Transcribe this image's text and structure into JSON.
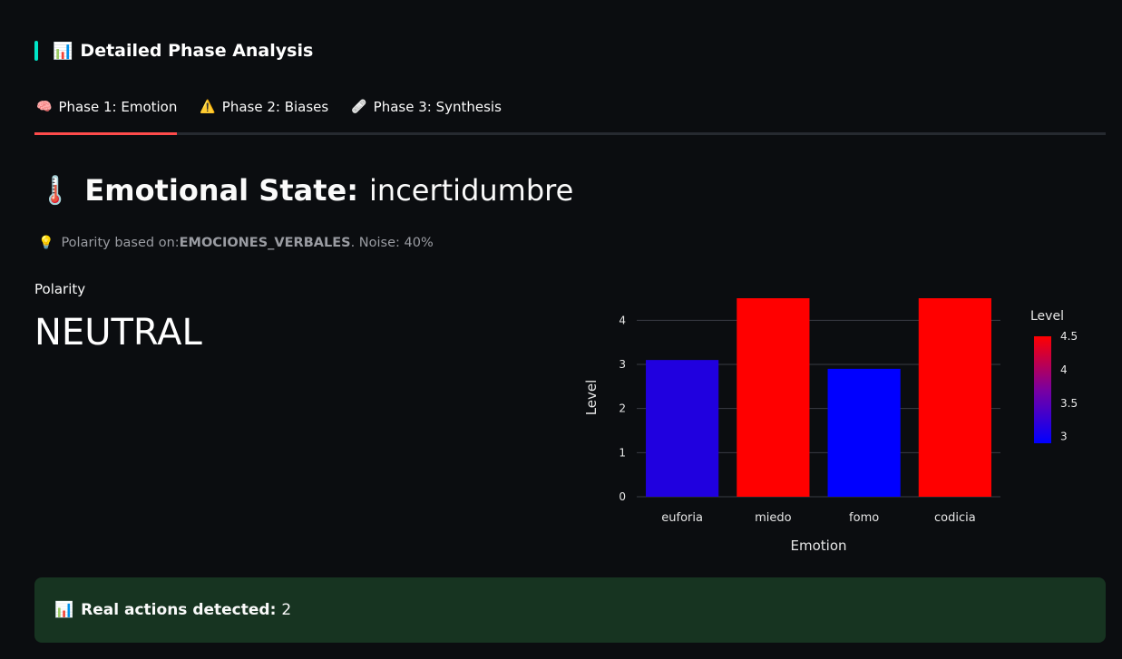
{
  "section": {
    "icon": "📊",
    "title": "Detailed Phase Analysis",
    "accent_color": "#00e5c8"
  },
  "tabs": [
    {
      "icon": "🧠",
      "label": "Phase 1: Emotion",
      "active": true
    },
    {
      "icon": "⚠️",
      "label": "Phase 2: Biases",
      "active": false
    },
    {
      "icon": "🩹",
      "label": "Phase 3: Synthesis",
      "active": false
    }
  ],
  "emotional_state": {
    "icon": "🌡️",
    "label": "Emotional State:",
    "value": "incertidumbre"
  },
  "caption": {
    "icon": "💡",
    "prefix": "Polarity based on: ",
    "source": "EMOCIONES_VERBALES",
    "suffix": ". Noise: 40%"
  },
  "metric": {
    "label": "Polarity",
    "value": "NEUTRAL"
  },
  "chart_data": {
    "type": "bar",
    "categories": [
      "euforia",
      "miedo",
      "fomo",
      "codicia"
    ],
    "values": [
      3.1,
      4.5,
      2.9,
      4.5
    ],
    "xlabel": "Emotion",
    "ylabel": "Level",
    "ylim": [
      0,
      4.5
    ],
    "yticks": [
      "0",
      "1",
      "2",
      "3",
      "4"
    ],
    "colorbar": {
      "title": "Level",
      "range": [
        2.9,
        4.5
      ],
      "ticks": [
        "3",
        "3.5",
        "4",
        "4.5"
      ],
      "color_low": "#0000ff",
      "color_high": "#ff0000"
    },
    "grid": true
  },
  "alert": {
    "icon": "📊",
    "label": "Real actions detected:",
    "value": "2"
  }
}
